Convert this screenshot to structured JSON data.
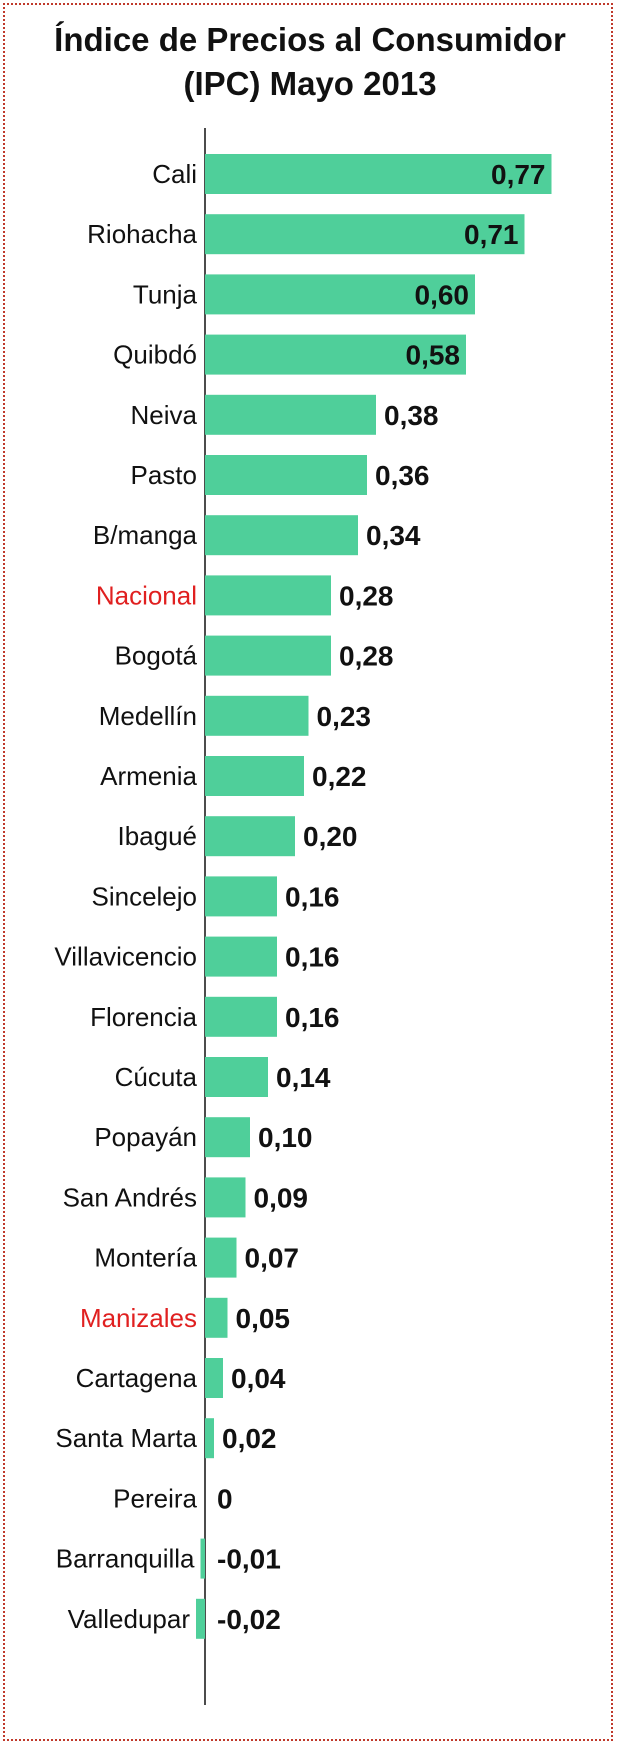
{
  "title_line1": "Índice de Precios al Consumidor",
  "title_line2": "(IPC) Mayo 2013",
  "colors": {
    "bar": "#4fcf9a",
    "highlight_label": "#e02020",
    "label": "#111111",
    "border": "#c0392b"
  },
  "chart_data": {
    "type": "bar",
    "orientation": "horizontal",
    "title": "Índice de Precios al Consumidor (IPC) Mayo 2013",
    "categories": [
      "Cali",
      "Riohacha",
      "Tunja",
      "Quibdó",
      "Neiva",
      "Pasto",
      "B/manga",
      "Nacional",
      "Bogotá",
      "Medellín",
      "Armenia",
      "Ibagué",
      "Sincelejo",
      "Villavicencio",
      "Florencia",
      "Cúcuta",
      "Popayán",
      "San Andrés",
      "Montería",
      "Manizales",
      "Cartagena",
      "Santa Marta",
      "Pereira",
      "Barranquilla",
      "Valledupar"
    ],
    "values": [
      0.77,
      0.71,
      0.6,
      0.58,
      0.38,
      0.36,
      0.34,
      0.28,
      0.28,
      0.23,
      0.22,
      0.2,
      0.16,
      0.16,
      0.16,
      0.14,
      0.1,
      0.09,
      0.07,
      0.05,
      0.04,
      0.02,
      0,
      -0.01,
      -0.02
    ],
    "value_labels": [
      "0,77",
      "0,71",
      "0,60",
      "0,58",
      "0,38",
      "0,36",
      "0,34",
      "0,28",
      "0,28",
      "0,23",
      "0,22",
      "0,20",
      "0,16",
      "0,16",
      "0,16",
      "0,14",
      "0,10",
      "0,09",
      "0,07",
      "0,05",
      "0,04",
      "0,02",
      "0",
      "-0,01",
      "-0,02"
    ],
    "highlighted": [
      "Nacional",
      "Manizales"
    ],
    "xlim": [
      -0.02,
      0.77
    ],
    "grid": false
  }
}
